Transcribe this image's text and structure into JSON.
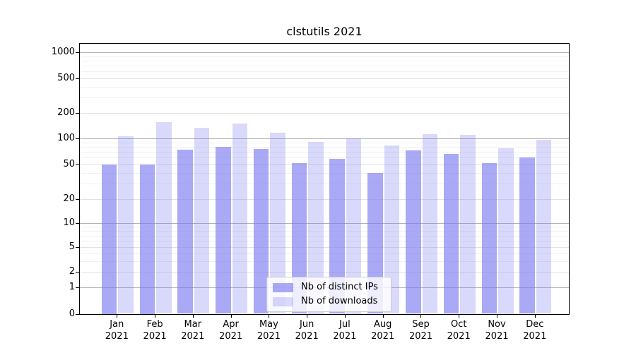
{
  "chart_data": {
    "type": "bar",
    "title": "clstutils 2021",
    "months": [
      "Jan",
      "Feb",
      "Mar",
      "Apr",
      "May",
      "Jun",
      "Jul",
      "Aug",
      "Sep",
      "Oct",
      "Nov",
      "Dec"
    ],
    "year_label": "2021",
    "series": [
      {
        "name": "Nb of distinct IPs",
        "color": "rgba(120,120,240,0.64)",
        "values": [
          50,
          50,
          74,
          80,
          76,
          52,
          58,
          40,
          73,
          66,
          52,
          60
        ]
      },
      {
        "name": "Nb of downloads",
        "color": "rgba(120,120,240,0.28)",
        "values": [
          106,
          154,
          134,
          148,
          116,
          91,
          101,
          83,
          113,
          110,
          77,
          96
        ]
      }
    ],
    "y_axis": {
      "scale": "symlog",
      "ticks": [
        0,
        1,
        2,
        5,
        10,
        20,
        50,
        100,
        200,
        500,
        1000
      ],
      "ylim": [
        0,
        1300
      ]
    },
    "x_axis": {
      "tick_labels": [
        "Jan 2021",
        "Feb 2021",
        "Mar 2021",
        "Apr 2021",
        "May 2021",
        "Jun 2021",
        "Jul 2021",
        "Aug 2021",
        "Sep 2021",
        "Oct 2021",
        "Nov 2021",
        "Dec 2021"
      ]
    },
    "legend": {
      "position": "lower center",
      "entries": [
        "Nb of distinct IPs",
        "Nb of downloads"
      ]
    },
    "grid": {
      "horizontal_major": true,
      "horizontal_minor": true
    }
  }
}
